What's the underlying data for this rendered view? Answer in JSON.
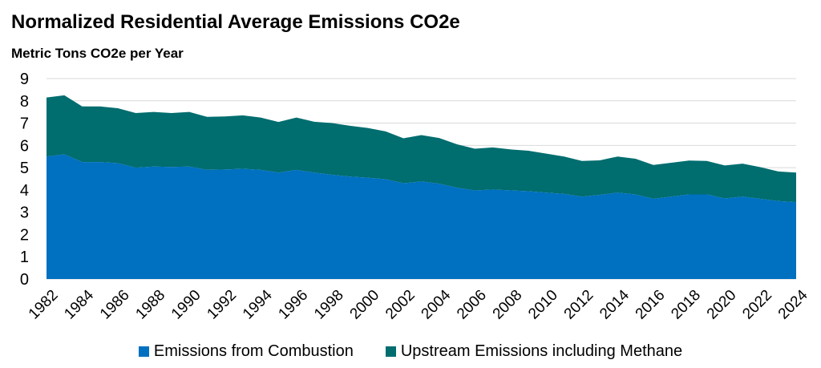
{
  "title": "Normalized Residential Average Emissions CO2e",
  "subtitle": "Metric Tons CO2e per Year",
  "colors": {
    "combustion": "#0070C0",
    "upstream": "#006D6F",
    "grid": "#D9D9D9"
  },
  "chart_data": {
    "type": "area",
    "stacked": true,
    "title": "Normalized Residential Average Emissions CO2e",
    "ylabel": "Metric Tons CO2e per Year",
    "xlabel": "",
    "ylim": [
      0,
      9
    ],
    "yticks": [
      "0",
      "1",
      "2",
      "3",
      "4",
      "5",
      "6",
      "7",
      "8",
      "9"
    ],
    "grid": true,
    "legend": "bottom",
    "x": [
      1982,
      1983,
      1984,
      1985,
      1986,
      1987,
      1988,
      1989,
      1990,
      1991,
      1992,
      1993,
      1994,
      1995,
      1996,
      1997,
      1998,
      1999,
      2000,
      2001,
      2002,
      2003,
      2004,
      2005,
      2006,
      2007,
      2008,
      2009,
      2010,
      2011,
      2012,
      2013,
      2014,
      2015,
      2016,
      2017,
      2018,
      2019,
      2020,
      2021,
      2022,
      2023,
      2024
    ],
    "xticks": [
      "1982",
      "1984",
      "1986",
      "1988",
      "1990",
      "1992",
      "1994",
      "1996",
      "1998",
      "2000",
      "2002",
      "2004",
      "2006",
      "2008",
      "2010",
      "2012",
      "2014",
      "2016",
      "2018",
      "2020",
      "2022",
      "2024"
    ],
    "series": [
      {
        "name": "Emissions from Combustion",
        "values": [
          5.5,
          5.6,
          5.25,
          5.25,
          5.2,
          5.0,
          5.05,
          5.03,
          5.05,
          4.9,
          4.92,
          4.95,
          4.9,
          4.78,
          4.9,
          4.78,
          4.68,
          4.6,
          4.55,
          4.48,
          4.3,
          4.38,
          4.28,
          4.1,
          3.98,
          4.02,
          3.98,
          3.94,
          3.88,
          3.82,
          3.7,
          3.78,
          3.88,
          3.8,
          3.6,
          3.7,
          3.8,
          3.8,
          3.62,
          3.7,
          3.6,
          3.5,
          3.45
        ]
      },
      {
        "name": "Upstream Emissions including Methane",
        "values": [
          2.65,
          2.65,
          2.5,
          2.5,
          2.47,
          2.45,
          2.45,
          2.42,
          2.45,
          2.38,
          2.38,
          2.4,
          2.35,
          2.27,
          2.35,
          2.28,
          2.32,
          2.28,
          2.23,
          2.15,
          2.02,
          2.08,
          2.05,
          1.95,
          1.87,
          1.89,
          1.84,
          1.82,
          1.75,
          1.68,
          1.6,
          1.55,
          1.62,
          1.6,
          1.52,
          1.52,
          1.52,
          1.5,
          1.48,
          1.48,
          1.42,
          1.33,
          1.33
        ]
      }
    ]
  }
}
